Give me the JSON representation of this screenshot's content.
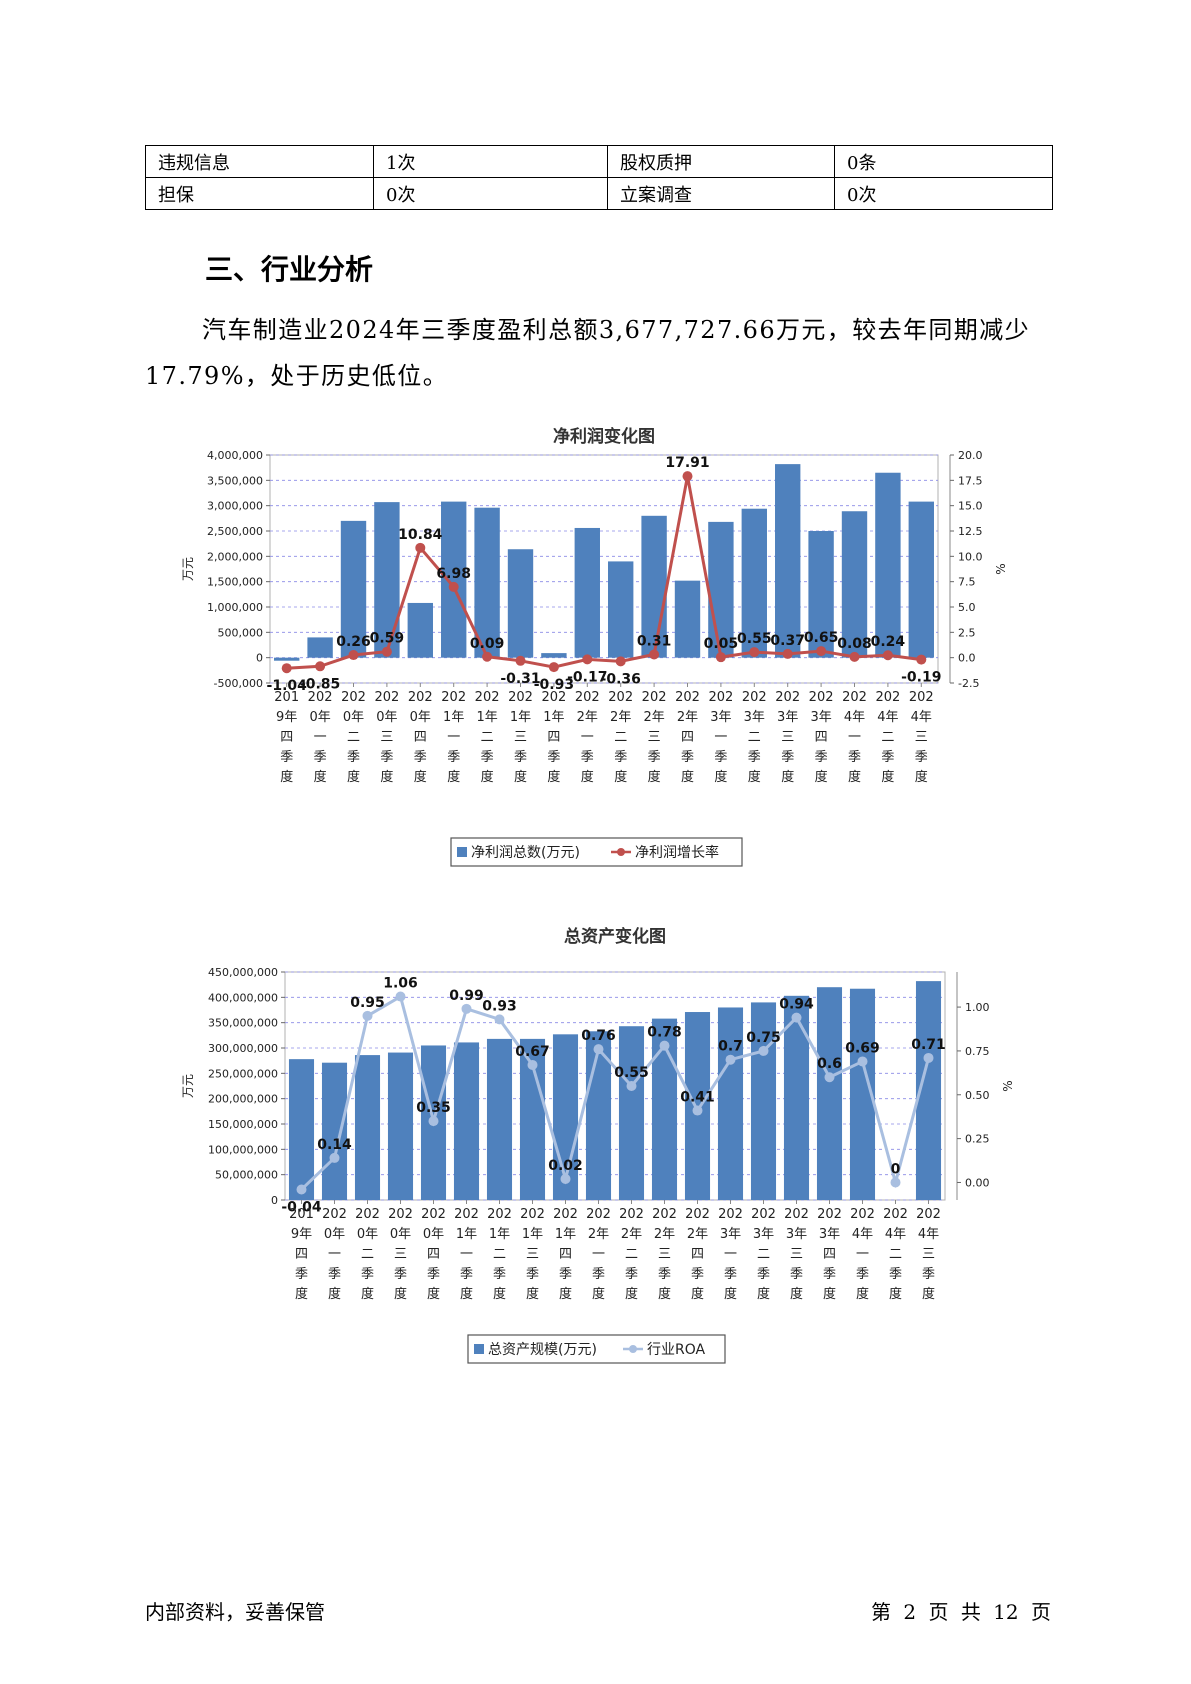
{
  "table": {
    "rows": [
      [
        "违规信息",
        "1次",
        "股权质押",
        "0条"
      ],
      [
        "担保",
        "0次",
        "立案调查",
        "0次"
      ]
    ]
  },
  "section": {
    "title": "三、行业分析",
    "paragraph": "汽车制造业2024年三季度盈利总额3,677,727.66万元，较去年同期减少17.79%，处于历史低位。"
  },
  "chart_data": [
    {
      "type": "bar",
      "title": "净利润变化图",
      "ylabel": "万元",
      "y2label": "%",
      "categories": [
        "2019年四季度",
        "2020年一季度",
        "2020年二季度",
        "2020年三季度",
        "2020年四季度",
        "2021年一季度",
        "2021年二季度",
        "2021年三季度",
        "2021年四季度",
        "2022年一季度",
        "2022年二季度",
        "2022年三季度",
        "2022年四季度",
        "2023年一季度",
        "2023年二季度",
        "2023年三季度",
        "2023年四季度",
        "2024年一季度",
        "2024年二季度",
        "2024年三季度"
      ],
      "series": [
        {
          "name": "净利润总数(万元)",
          "type": "bar",
          "axis": "left",
          "values": [
            -60000,
            400000,
            2700000,
            3070000,
            1080000,
            3080000,
            2960000,
            2140000,
            90000,
            2560000,
            1900000,
            2800000,
            1520000,
            2680000,
            2940000,
            3820000,
            2500000,
            2890000,
            3650000,
            3080000
          ]
        },
        {
          "name": "净利润增长率",
          "type": "line",
          "axis": "right",
          "values": [
            -1.04,
            -0.85,
            0.26,
            0.59,
            10.84,
            6.98,
            0.09,
            -0.31,
            -0.93,
            -0.17,
            -0.36,
            0.31,
            17.91,
            0.05,
            0.55,
            0.37,
            0.65,
            0.08,
            0.24,
            -0.19
          ],
          "labels": [
            "-1.04",
            "-0.85",
            "0.26",
            "0.59",
            "10.84",
            "6.98",
            "0.09",
            "-0.31",
            "-0.93",
            "-0.17",
            "-0.36",
            "0.31",
            "17.91",
            "0.05",
            "0.55",
            "0.37",
            "0.65",
            "0.08",
            "0.24",
            "-0.19"
          ]
        }
      ],
      "ylim": [
        -500000,
        4000000
      ],
      "yticks": [
        "-500,000",
        "0",
        "500,000",
        "1,000,000",
        "1,500,000",
        "2,000,000",
        "2,500,000",
        "3,000,000",
        "3,500,000",
        "4,000,000"
      ],
      "y2lim": [
        -2.5,
        20
      ],
      "y2ticks": [
        "-2.5",
        "0.0",
        "2.5",
        "5.0",
        "7.5",
        "10.0",
        "12.5",
        "15.0",
        "17.5",
        "20.0"
      ],
      "grid": true,
      "legend": "bottom",
      "colors": {
        "bar": "#4f81bd",
        "line": "#c0504d"
      }
    },
    {
      "type": "bar",
      "title": "总资产变化图",
      "ylabel": "万元",
      "y2label": "%",
      "categories": [
        "2019年四季度",
        "2020年一季度",
        "2020年二季度",
        "2020年三季度",
        "2020年四季度",
        "2021年一季度",
        "2021年二季度",
        "2021年三季度",
        "2021年四季度",
        "2022年一季度",
        "2022年二季度",
        "2022年三季度",
        "2022年四季度",
        "2023年一季度",
        "2023年二季度",
        "2023年三季度",
        "2023年四季度",
        "2024年一季度",
        "2024年二季度",
        "2024年三季度"
      ],
      "series": [
        {
          "name": "总资产规模(万元)",
          "type": "bar",
          "axis": "left",
          "values": [
            278000000,
            271000000,
            286000000,
            291000000,
            305000000,
            311000000,
            318000000,
            318000000,
            327000000,
            333000000,
            343000000,
            358000000,
            371000000,
            380000000,
            390000000,
            403000000,
            420000000,
            417000000,
            0,
            432000000
          ]
        },
        {
          "name": "行业ROA",
          "type": "line",
          "axis": "right",
          "values": [
            -0.04,
            0.14,
            0.95,
            1.06,
            0.35,
            0.99,
            0.93,
            0.67,
            0.02,
            0.76,
            0.55,
            0.78,
            0.41,
            0.7,
            0.75,
            0.94,
            0.6,
            0.69,
            0,
            0.71
          ],
          "labels": [
            "-0.04",
            "0.14",
            "0.95",
            "1.06",
            "0.35",
            "0.99",
            "0.93",
            "0.67",
            "0.02",
            "0.76",
            "0.55",
            "0.78",
            "0.41",
            "0.7",
            "0.75",
            "0.94",
            "0.6",
            "0.69",
            "0",
            "0.71"
          ]
        }
      ],
      "ylim": [
        0,
        450000000
      ],
      "yticks": [
        "0",
        "50,000,000",
        "100,000,000",
        "150,000,000",
        "200,000,000",
        "250,000,000",
        "300,000,000",
        "350,000,000",
        "400,000,000",
        "450,000,000"
      ],
      "y2lim": [
        -0.1,
        1.2
      ],
      "y2ticks": [
        "0.00",
        "0.25",
        "0.50",
        "0.75",
        "1.00"
      ],
      "y2tickValues": [
        0,
        0.25,
        0.5,
        0.75,
        1.0
      ],
      "grid": true,
      "legend": "bottom",
      "colors": {
        "bar": "#4f81bd",
        "line": "#a9bfe0"
      }
    }
  ],
  "footer": {
    "left": "内部资料，妥善保管",
    "right": "第 2 页  共 12 页"
  }
}
